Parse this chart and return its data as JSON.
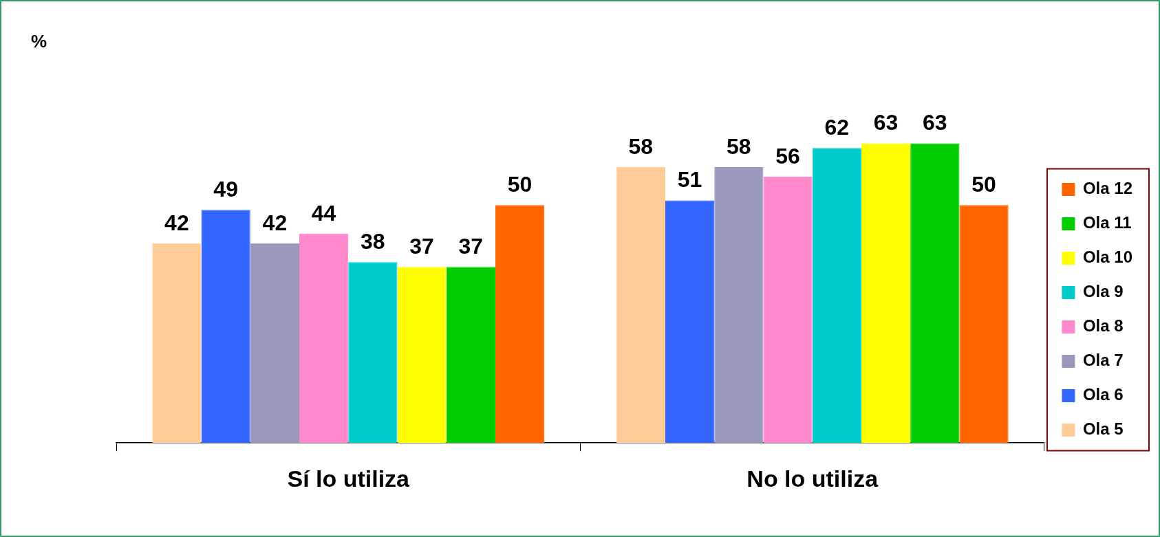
{
  "chart_data": {
    "type": "bar",
    "annotations": [
      "%"
    ],
    "categories": [
      "Sí lo utiliza",
      "No lo utiliza"
    ],
    "series": [
      {
        "name": "Ola 5",
        "color": "#ffcc99",
        "values": [
          42,
          58
        ]
      },
      {
        "name": "Ola 6",
        "color": "#3366ff",
        "values": [
          49,
          51
        ]
      },
      {
        "name": "Ola 7",
        "color": "#9999bb",
        "values": [
          42,
          58
        ]
      },
      {
        "name": "Ola 8",
        "color": "#ff88cc",
        "values": [
          44,
          56
        ]
      },
      {
        "name": "Ola 9",
        "color": "#00cccc",
        "values": [
          38,
          62
        ]
      },
      {
        "name": "Ola 10",
        "color": "#ffff00",
        "values": [
          37,
          63
        ]
      },
      {
        "name": "Ola 11",
        "color": "#00cc00",
        "values": [
          37,
          63
        ]
      },
      {
        "name": "Ola 12",
        "color": "#ff6600",
        "values": [
          50,
          50
        ]
      }
    ],
    "data_labels": true,
    "legend": "right",
    "grid": false
  }
}
